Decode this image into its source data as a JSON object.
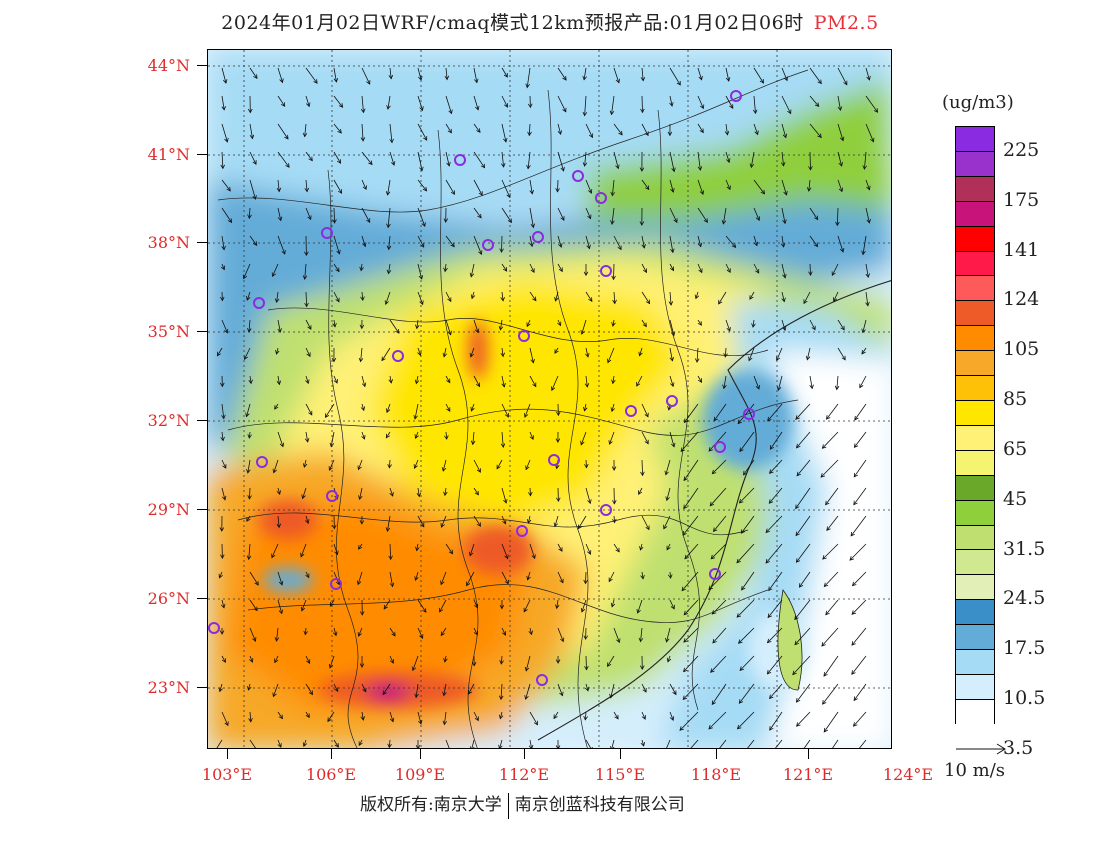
{
  "header": {
    "title": "2024年01月02日WRF/cmaq模式12km预报产品:01月02日06时",
    "pollutant": "PM2.5"
  },
  "axes": {
    "lat_labels": [
      "44°N",
      "41°N",
      "38°N",
      "35°N",
      "32°N",
      "29°N",
      "26°N",
      "23°N"
    ],
    "lon_labels": [
      "103°E",
      "106°E",
      "109°E",
      "112°E",
      "115°E",
      "118°E",
      "121°E",
      "124°E"
    ]
  },
  "legend": {
    "unit": "(ug/m3)",
    "colors": [
      "#8a2be2",
      "#9932cc",
      "#b0305a",
      "#c8147a",
      "#ff0000",
      "#ff1a4a",
      "#ff5a5a",
      "#ee5a28",
      "#ff8c00",
      "#f7a828",
      "#ffc107",
      "#ffe600",
      "#fff176",
      "#f4f470",
      "#6aa82a",
      "#8fcf3c",
      "#bfe070",
      "#d0e890",
      "#e2f0b8",
      "#3a8fc8",
      "#64acd8",
      "#a6dbf5",
      "#d4eefc",
      "#ffffff"
    ],
    "labels": [
      "225",
      "175",
      "141",
      "124",
      "105",
      "85",
      "65",
      "45",
      "31.5",
      "24.5",
      "17.5",
      "10.5",
      "3.5"
    ]
  },
  "wind": {
    "reference": "10 m/s"
  },
  "footer": {
    "copyright_left": "版权所有:南京大学",
    "copyright_right": "南京创蓝科技有限公司"
  },
  "map": {
    "stations": 24,
    "features": [
      "PM2.5 concentration field",
      "wind vectors",
      "province boundaries",
      "city markers"
    ]
  }
}
